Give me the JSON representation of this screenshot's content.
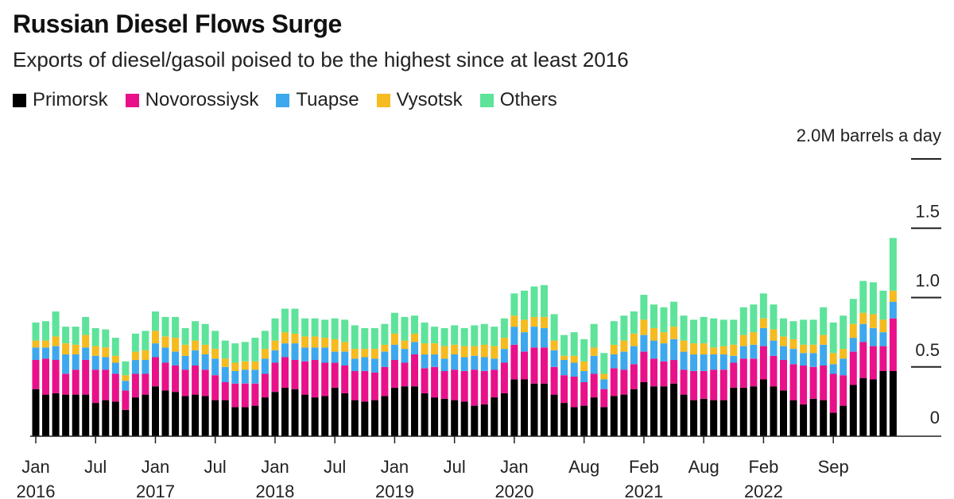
{
  "chart_data": {
    "type": "bar",
    "stacked": true,
    "title": "Russian Diesel Flows Surge",
    "subtitle": "Exports of diesel/gasoil poised to be the highest since at least 2016",
    "ylabel": "2.0M barrels a day",
    "ylim": [
      0,
      2.0
    ],
    "yticks": [
      {
        "value": 0,
        "label": "0"
      },
      {
        "value": 0.5,
        "label": "0.5"
      },
      {
        "value": 1.0,
        "label": "1.0"
      },
      {
        "value": 1.5,
        "label": "1.5"
      },
      {
        "value": 2.0,
        "label": ""
      }
    ],
    "start_month": "2016-01",
    "x_ticks": [
      {
        "index": 0,
        "month": "Jan",
        "year": "2016"
      },
      {
        "index": 6,
        "month": "Jul",
        "year": ""
      },
      {
        "index": 12,
        "month": "Jan",
        "year": "2017"
      },
      {
        "index": 18,
        "month": "Jul",
        "year": ""
      },
      {
        "index": 24,
        "month": "Jan",
        "year": "2018"
      },
      {
        "index": 30,
        "month": "Jul",
        "year": ""
      },
      {
        "index": 36,
        "month": "Jan",
        "year": "2019"
      },
      {
        "index": 42,
        "month": "Jul",
        "year": ""
      },
      {
        "index": 48,
        "month": "Jan",
        "year": "2020"
      },
      {
        "index": 55,
        "month": "Aug",
        "year": ""
      },
      {
        "index": 61,
        "month": "Feb",
        "year": "2021"
      },
      {
        "index": 67,
        "month": "Aug",
        "year": ""
      },
      {
        "index": 73,
        "month": "Feb",
        "year": "2022"
      },
      {
        "index": 80,
        "month": "Sep",
        "year": ""
      }
    ],
    "legend_position": "top-left",
    "series": [
      {
        "name": "Primorsk",
        "color": "#000000",
        "values": [
          0.34,
          0.3,
          0.31,
          0.3,
          0.3,
          0.3,
          0.24,
          0.26,
          0.25,
          0.19,
          0.28,
          0.3,
          0.36,
          0.33,
          0.32,
          0.29,
          0.3,
          0.29,
          0.26,
          0.26,
          0.21,
          0.21,
          0.22,
          0.28,
          0.32,
          0.35,
          0.34,
          0.3,
          0.28,
          0.29,
          0.35,
          0.31,
          0.26,
          0.25,
          0.26,
          0.29,
          0.35,
          0.36,
          0.36,
          0.31,
          0.28,
          0.27,
          0.26,
          0.25,
          0.22,
          0.23,
          0.28,
          0.31,
          0.41,
          0.41,
          0.38,
          0.38,
          0.3,
          0.24,
          0.21,
          0.22,
          0.28,
          0.21,
          0.29,
          0.3,
          0.34,
          0.39,
          0.36,
          0.36,
          0.38,
          0.3,
          0.26,
          0.27,
          0.26,
          0.26,
          0.35,
          0.35,
          0.36,
          0.41,
          0.36,
          0.33,
          0.26,
          0.23,
          0.27,
          0.26,
          0.17,
          0.22,
          0.37,
          0.42,
          0.41,
          0.47,
          0.47
        ]
      },
      {
        "name": "Novorossiysk",
        "color": "#e8118a",
        "values": [
          0.21,
          0.26,
          0.24,
          0.15,
          0.18,
          0.25,
          0.24,
          0.22,
          0.2,
          0.14,
          0.17,
          0.15,
          0.21,
          0.2,
          0.19,
          0.19,
          0.21,
          0.19,
          0.18,
          0.13,
          0.17,
          0.17,
          0.16,
          0.17,
          0.21,
          0.22,
          0.21,
          0.24,
          0.27,
          0.24,
          0.18,
          0.2,
          0.21,
          0.22,
          0.2,
          0.21,
          0.2,
          0.17,
          0.23,
          0.18,
          0.22,
          0.2,
          0.22,
          0.22,
          0.26,
          0.24,
          0.2,
          0.22,
          0.25,
          0.2,
          0.26,
          0.26,
          0.2,
          0.2,
          0.22,
          0.17,
          0.17,
          0.13,
          0.2,
          0.18,
          0.18,
          0.22,
          0.2,
          0.18,
          0.17,
          0.18,
          0.21,
          0.2,
          0.22,
          0.22,
          0.18,
          0.21,
          0.2,
          0.24,
          0.22,
          0.22,
          0.26,
          0.28,
          0.23,
          0.25,
          0.28,
          0.22,
          0.24,
          0.26,
          0.24,
          0.18,
          0.38
        ]
      },
      {
        "name": "Tuapse",
        "color": "#3ea8ee",
        "values": [
          0.09,
          0.08,
          0.1,
          0.14,
          0.11,
          0.09,
          0.1,
          0.09,
          0.08,
          0.07,
          0.1,
          0.1,
          0.1,
          0.11,
          0.1,
          0.1,
          0.11,
          0.11,
          0.12,
          0.11,
          0.09,
          0.1,
          0.1,
          0.11,
          0.09,
          0.1,
          0.12,
          0.1,
          0.09,
          0.11,
          0.08,
          0.1,
          0.09,
          0.1,
          0.1,
          0.11,
          0.11,
          0.1,
          0.09,
          0.1,
          0.09,
          0.09,
          0.11,
          0.1,
          0.1,
          0.1,
          0.08,
          0.1,
          0.13,
          0.14,
          0.15,
          0.14,
          0.12,
          0.11,
          0.1,
          0.08,
          0.13,
          0.07,
          0.1,
          0.13,
          0.13,
          0.12,
          0.13,
          0.13,
          0.15,
          0.13,
          0.12,
          0.12,
          0.11,
          0.11,
          0.05,
          0.09,
          0.1,
          0.13,
          0.11,
          0.1,
          0.11,
          0.09,
          0.1,
          0.15,
          0.07,
          0.12,
          0.1,
          0.13,
          0.13,
          0.1,
          0.12
        ]
      },
      {
        "name": "Vysotsk",
        "color": "#f5bb1f",
        "values": [
          0.05,
          0.05,
          0.07,
          0.08,
          0.07,
          0.09,
          0.07,
          0.07,
          0.05,
          0.04,
          0.06,
          0.07,
          0.09,
          0.08,
          0.1,
          0.08,
          0.07,
          0.07,
          0.07,
          0.06,
          0.06,
          0.06,
          0.06,
          0.07,
          0.07,
          0.08,
          0.07,
          0.08,
          0.08,
          0.07,
          0.09,
          0.07,
          0.07,
          0.06,
          0.07,
          0.05,
          0.08,
          0.06,
          0.06,
          0.08,
          0.08,
          0.09,
          0.07,
          0.08,
          0.07,
          0.09,
          0.09,
          0.08,
          0.08,
          0.09,
          0.07,
          0.08,
          0.07,
          0.03,
          0.05,
          0.07,
          0.06,
          0.04,
          0.07,
          0.08,
          0.09,
          0.11,
          0.09,
          0.08,
          0.09,
          0.08,
          0.08,
          0.08,
          0.05,
          0.06,
          0.08,
          0.08,
          0.09,
          0.07,
          0.08,
          0.07,
          0.07,
          0.06,
          0.06,
          0.07,
          0.08,
          0.07,
          0.1,
          0.08,
          0.1,
          0.09,
          0.08
        ]
      },
      {
        "name": "Others",
        "color": "#5ee39a",
        "values": [
          0.13,
          0.14,
          0.18,
          0.12,
          0.13,
          0.13,
          0.13,
          0.13,
          0.13,
          0.1,
          0.13,
          0.14,
          0.14,
          0.14,
          0.15,
          0.12,
          0.14,
          0.15,
          0.13,
          0.13,
          0.14,
          0.14,
          0.17,
          0.13,
          0.16,
          0.17,
          0.18,
          0.13,
          0.13,
          0.13,
          0.15,
          0.16,
          0.17,
          0.15,
          0.15,
          0.15,
          0.15,
          0.17,
          0.13,
          0.15,
          0.12,
          0.13,
          0.14,
          0.13,
          0.15,
          0.15,
          0.14,
          0.14,
          0.16,
          0.21,
          0.22,
          0.23,
          0.19,
          0.15,
          0.17,
          0.16,
          0.17,
          0.15,
          0.17,
          0.18,
          0.16,
          0.18,
          0.17,
          0.18,
          0.18,
          0.18,
          0.17,
          0.19,
          0.21,
          0.19,
          0.18,
          0.2,
          0.2,
          0.18,
          0.18,
          0.13,
          0.13,
          0.18,
          0.18,
          0.2,
          0.22,
          0.24,
          0.18,
          0.23,
          0.23,
          0.21,
          0.38
        ]
      }
    ]
  }
}
